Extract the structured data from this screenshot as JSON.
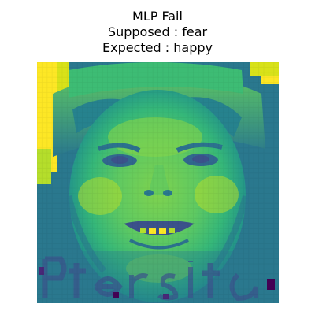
{
  "figure": {
    "title_lines": [
      "MLP Fail",
      "Supposed : fear",
      "Expected : happy"
    ]
  },
  "image": {
    "content": "grayscale face rendered with viridis colormap",
    "colormap": [
      "#440154",
      "#3b528b",
      "#21918c",
      "#5ec962",
      "#fde725"
    ],
    "background_color": "#ffffff"
  }
}
